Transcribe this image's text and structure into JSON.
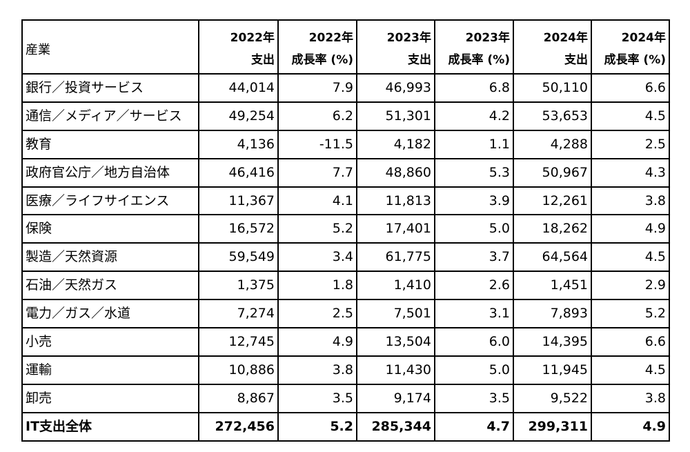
{
  "table": {
    "corner_label": "産業",
    "header_years": [
      "2022年",
      "2022年",
      "2023年",
      "2023年",
      "2024年",
      "2024年"
    ],
    "header_subs": [
      "支出",
      "成長率 (%)",
      "支出",
      "成長率 (%)",
      "支出",
      "成長率 (%)"
    ],
    "rows": [
      {
        "industry": "銀行／投資サービス",
        "values": [
          "44,014",
          "7.9",
          "46,993",
          "6.8",
          "50,110",
          "6.6"
        ]
      },
      {
        "industry": "通信／メディア／サービス",
        "values": [
          "49,254",
          "6.2",
          "51,301",
          "4.2",
          "53,653",
          "4.5"
        ]
      },
      {
        "industry": "教育",
        "values": [
          "4,136",
          "-11.5",
          "4,182",
          "1.1",
          "4,288",
          "2.5"
        ]
      },
      {
        "industry": "政府官公庁／地方自治体",
        "values": [
          "46,416",
          "7.7",
          "48,860",
          "5.3",
          "50,967",
          "4.3"
        ]
      },
      {
        "industry": "医療／ライフサイエンス",
        "values": [
          "11,367",
          "4.1",
          "11,813",
          "3.9",
          "12,261",
          "3.8"
        ]
      },
      {
        "industry": "保険",
        "values": [
          "16,572",
          "5.2",
          "17,401",
          "5.0",
          "18,262",
          "4.9"
        ]
      },
      {
        "industry": "製造／天然資源",
        "values": [
          "59,549",
          "3.4",
          "61,775",
          "3.7",
          "64,564",
          "4.5"
        ]
      },
      {
        "industry": "石油／天然ガス",
        "values": [
          "1,375",
          "1.8",
          "1,410",
          "2.6",
          "1,451",
          "2.9"
        ]
      },
      {
        "industry": "電力／ガス／水道",
        "values": [
          "7,274",
          "2.5",
          "7,501",
          "3.1",
          "7,893",
          "5.2"
        ]
      },
      {
        "industry": "小売",
        "values": [
          "12,745",
          "4.9",
          "13,504",
          "6.0",
          "14,395",
          "6.6"
        ]
      },
      {
        "industry": "運輸",
        "values": [
          "10,886",
          "3.8",
          "11,430",
          "5.0",
          "11,945",
          "4.5"
        ]
      },
      {
        "industry": "卸売",
        "values": [
          "8,867",
          "3.5",
          "9,174",
          "3.5",
          "9,522",
          "3.8"
        ]
      }
    ],
    "total": {
      "industry": "IT支出全体",
      "values": [
        "272,456",
        "5.2",
        "285,344",
        "4.7",
        "299,311",
        "4.9"
      ]
    }
  }
}
